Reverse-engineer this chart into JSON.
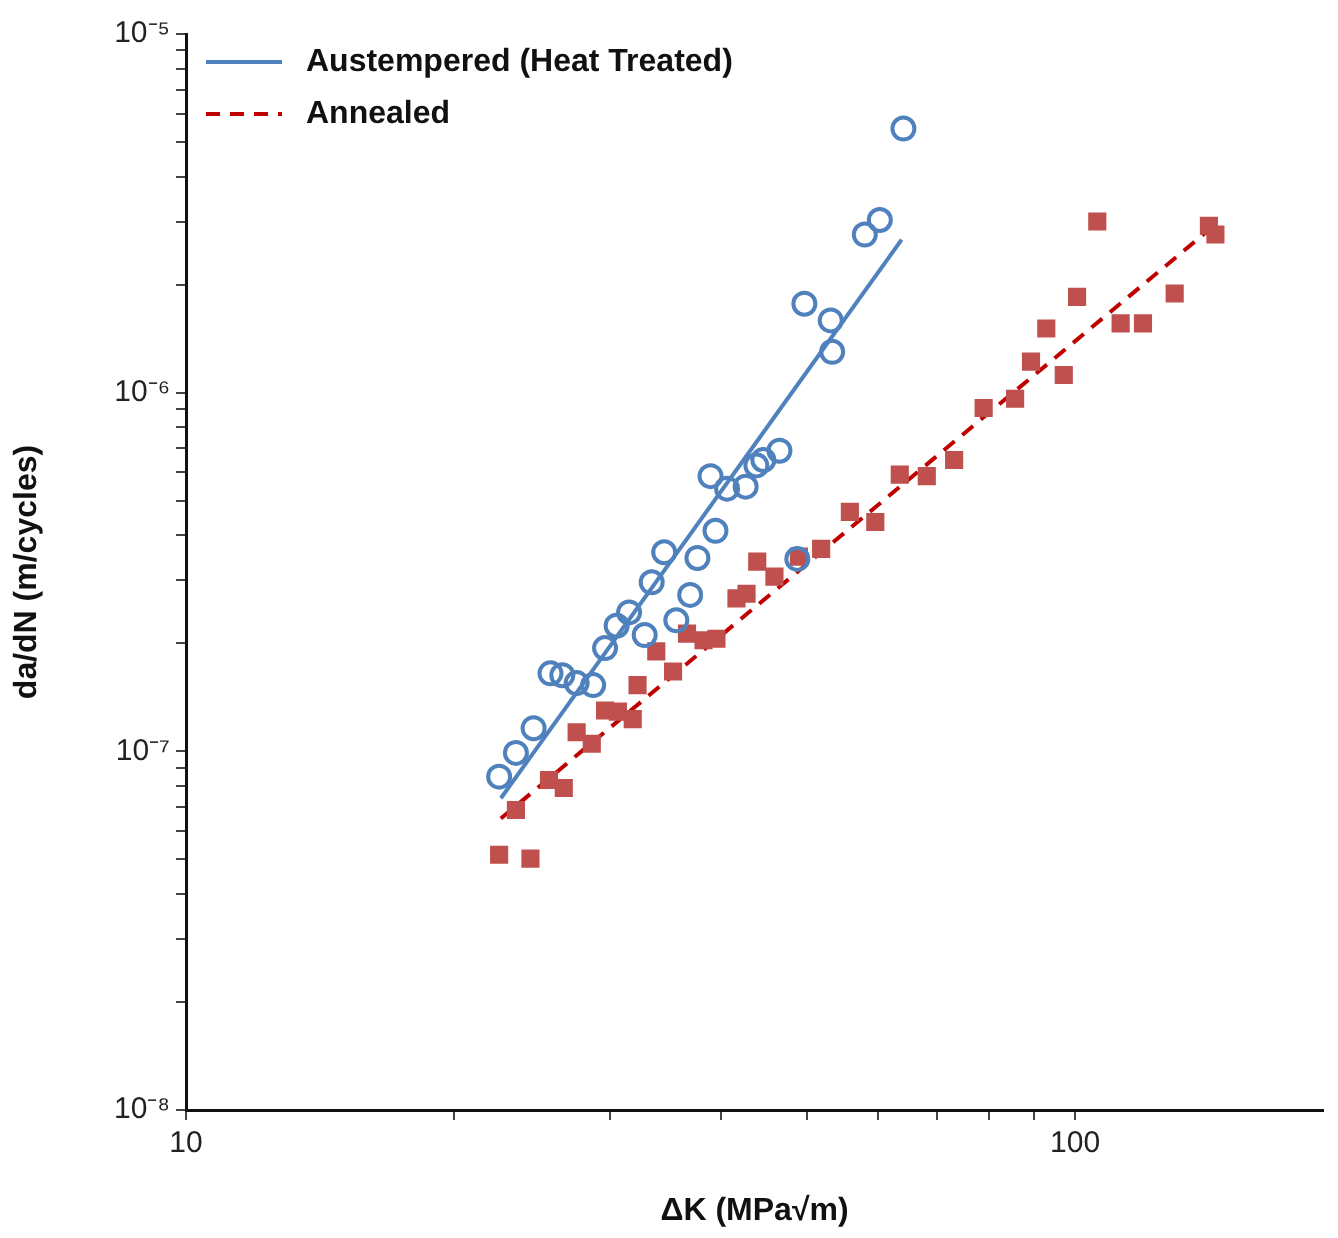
{
  "chart_data": {
    "type": "scatter",
    "xlabel": "ΔK (MPa√m)",
    "ylabel": "da/dN (m/cycles)",
    "log": "xy",
    "grid": false,
    "legend": "top left",
    "xlim": [
      10,
      190
    ],
    "xticks": [
      10,
      {
        "value": 20,
        "label": null
      },
      {
        "value": 30,
        "label": null
      },
      {
        "value": 40,
        "label": null
      },
      {
        "value": 50,
        "label": null
      },
      {
        "value": 60,
        "label": null
      },
      {
        "value": 70,
        "label": null
      },
      {
        "value": 80,
        "label": null
      },
      {
        "value": 90,
        "label": null
      },
      100
    ],
    "ylim": [
      1e-08,
      1e-05
    ],
    "yticks": [
      {
        "value": 1e-08,
        "label": "10⁻⁸"
      },
      {
        "value": 2e-08,
        "label": null
      },
      {
        "value": 3e-08,
        "label": null
      },
      {
        "value": 4e-08,
        "label": null
      },
      {
        "value": 5e-08,
        "label": null
      },
      {
        "value": 6e-08,
        "label": null
      },
      {
        "value": 7e-08,
        "label": null
      },
      {
        "value": 8e-08,
        "label": null
      },
      {
        "value": 9e-08,
        "label": null
      },
      {
        "value": 1e-07,
        "label": "10⁻⁷"
      },
      {
        "value": 2e-07,
        "label": null
      },
      {
        "value": 3e-07,
        "label": null
      },
      {
        "value": 4e-07,
        "label": null
      },
      {
        "value": 5e-07,
        "label": null
      },
      {
        "value": 6e-07,
        "label": null
      },
      {
        "value": 7e-07,
        "label": null
      },
      {
        "value": 8e-07,
        "label": null
      },
      {
        "value": 9e-07,
        "label": null
      },
      {
        "value": 1e-06,
        "label": "10⁻⁶"
      },
      {
        "value": 2e-06,
        "label": null
      },
      {
        "value": 3e-06,
        "label": null
      },
      {
        "value": 4e-06,
        "label": null
      },
      {
        "value": 5e-06,
        "label": null
      },
      {
        "value": 6e-06,
        "label": null
      },
      {
        "value": 7e-06,
        "label": null
      },
      {
        "value": 8e-06,
        "label": null
      },
      {
        "value": 9e-06,
        "label": null
      },
      {
        "value": 1e-05,
        "label": "10⁻⁵"
      }
    ],
    "series": [
      {
        "marker": "circle",
        "color": "#4f81bd",
        "x": [
          22.5,
          23.5,
          24.6,
          25.7,
          26.5,
          27.5,
          28.7,
          29.6,
          30.5,
          31.5,
          32.8,
          33.4,
          34.5,
          35.6,
          36.9,
          37.6,
          38.9,
          39.4,
          40.6,
          42.6,
          43.8,
          44.6,
          46.5,
          48.7,
          49.6,
          53.1,
          53.3,
          58.0,
          60.3,
          64.1
        ],
        "values": [
          8.5e-08,
          9.9e-08,
          1.16e-07,
          1.65e-07,
          1.63e-07,
          1.55e-07,
          1.53e-07,
          1.94e-07,
          2.24e-07,
          2.44e-07,
          2.11e-07,
          2.96e-07,
          3.59e-07,
          2.32e-07,
          2.73e-07,
          3.46e-07,
          5.85e-07,
          4.12e-07,
          5.4e-07,
          5.47e-07,
          6.27e-07,
          6.49e-07,
          6.89e-07,
          3.44e-07,
          1.77e-06,
          1.59e-06,
          1.3e-06,
          2.76e-06,
          3.03e-06,
          5.45e-06
        ]
      },
      {
        "type": "line",
        "name": "Austempered (Heat Treated)",
        "color": "#4f81bd",
        "line_style": "solid",
        "marker": "none",
        "x": [
          22.6,
          63.8
        ],
        "values": [
          7.4e-08,
          2.67e-06
        ]
      },
      {
        "marker": "square",
        "color": "#c0504d",
        "x": [
          22.5,
          24.4,
          23.5,
          25.6,
          26.6,
          27.5,
          28.6,
          29.6,
          30.6,
          31.8,
          32.2,
          33.8,
          35.3,
          36.6,
          38.2,
          39.5,
          41.6,
          42.7,
          43.9,
          45.9,
          48.9,
          51.8,
          55.8,
          59.6,
          63.5,
          68.1,
          73.1,
          78.9,
          85.6,
          89.2,
          92.8,
          97.1,
          100.5,
          105.9,
          112.5,
          119.2,
          129.4,
          141.4,
          143.8
        ],
        "values": [
          5.15e-08,
          5.02e-08,
          6.86e-08,
          8.32e-08,
          7.9e-08,
          1.13e-07,
          1.05e-07,
          1.3e-07,
          1.29e-07,
          1.23e-07,
          1.53e-07,
          1.9e-07,
          1.67e-07,
          2.13e-07,
          2.04e-07,
          2.06e-07,
          2.67e-07,
          2.75e-07,
          3.38e-07,
          3.07e-07,
          3.49e-07,
          3.67e-07,
          4.65e-07,
          4.36e-07,
          5.91e-07,
          5.85e-07,
          6.49e-07,
          9.06e-07,
          9.62e-07,
          1.22e-06,
          1.51e-06,
          1.12e-06,
          1.85e-06,
          3e-06,
          1.56e-06,
          1.56e-06,
          1.89e-06,
          2.92e-06,
          2.76e-06
        ]
      },
      {
        "type": "line",
        "name": "Annealed",
        "color": "#c00000",
        "line_style": "dashed",
        "marker": "none",
        "x": [
          22.6,
          142.3
        ],
        "values": [
          6.5e-08,
          2.88e-06
        ]
      }
    ]
  }
}
